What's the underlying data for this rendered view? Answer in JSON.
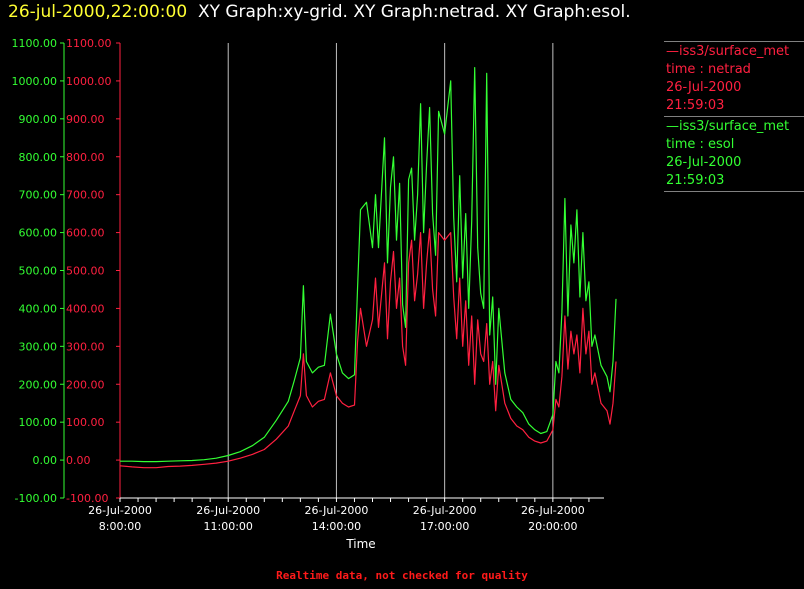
{
  "header": {
    "datetime": "26-jul-2000,22:00:00",
    "graphs": "XY Graph:xy-grid.  XY Graph:netrad.  XY Graph:esol."
  },
  "legend": [
    {
      "line": "iss3/surface_met",
      "label": "time : netrad",
      "date": "26-Jul-2000",
      "time": "21:59:03",
      "color": "#ff2040"
    },
    {
      "line": "iss3/surface_met",
      "label": "time : esol",
      "date": "26-Jul-2000",
      "time": "21:59:03",
      "color": "#33ff33"
    }
  ],
  "footer": "Realtime data, not checked for quality",
  "chart_data": {
    "type": "line",
    "xlabel": "Time",
    "x_ticks": [
      {
        "date": "26-Jul-2000",
        "time": "8:00:00"
      },
      {
        "date": "26-Jul-2000",
        "time": "11:00:00"
      },
      {
        "date": "26-Jul-2000",
        "time": "14:00:00"
      },
      {
        "date": "26-Jul-2000",
        "time": "17:00:00"
      },
      {
        "date": "26-Jul-2000",
        "time": "20:00:00"
      }
    ],
    "xlim": [
      "26-Jul-2000 8:00:00",
      "26-Jul-2000 22:00:00"
    ],
    "y_ticks": [
      "1100.00",
      "1000.00",
      "900.00",
      "800.00",
      "700.00",
      "600.00",
      "500.00",
      "400.00",
      "300.00",
      "200.00",
      "100.00",
      "0.00",
      "-100.00"
    ],
    "ylim": [
      -100,
      1100
    ],
    "grid": "vertical",
    "series": [
      {
        "name": "time : netrad",
        "color": "#ff2040",
        "points": [
          [
            "8:00",
            -15
          ],
          [
            "8:20",
            -18
          ],
          [
            "8:40",
            -20
          ],
          [
            "9:00",
            -20
          ],
          [
            "9:20",
            -17
          ],
          [
            "9:40",
            -16
          ],
          [
            "10:00",
            -14
          ],
          [
            "10:20",
            -11
          ],
          [
            "10:40",
            -8
          ],
          [
            "11:00",
            -3
          ],
          [
            "11:20",
            5
          ],
          [
            "11:40",
            15
          ],
          [
            "12:00",
            28
          ],
          [
            "12:20",
            55
          ],
          [
            "12:40",
            90
          ],
          [
            "12:50",
            130
          ],
          [
            "13:00",
            170
          ],
          [
            "13:05",
            280
          ],
          [
            "13:10",
            170
          ],
          [
            "13:20",
            140
          ],
          [
            "13:30",
            155
          ],
          [
            "13:40",
            160
          ],
          [
            "13:50",
            230
          ],
          [
            "14:00",
            170
          ],
          [
            "14:10",
            150
          ],
          [
            "14:20",
            140
          ],
          [
            "14:30",
            145
          ],
          [
            "14:35",
            310
          ],
          [
            "14:40",
            400
          ],
          [
            "14:50",
            300
          ],
          [
            "15:00",
            370
          ],
          [
            "15:05",
            480
          ],
          [
            "15:10",
            350
          ],
          [
            "15:20",
            520
          ],
          [
            "15:25",
            320
          ],
          [
            "15:30",
            470
          ],
          [
            "15:35",
            550
          ],
          [
            "15:40",
            400
          ],
          [
            "15:45",
            480
          ],
          [
            "15:50",
            300
          ],
          [
            "15:55",
            250
          ],
          [
            "16:00",
            520
          ],
          [
            "16:05",
            580
          ],
          [
            "16:10",
            420
          ],
          [
            "16:15",
            490
          ],
          [
            "16:20",
            600
          ],
          [
            "16:25",
            400
          ],
          [
            "16:30",
            520
          ],
          [
            "16:35",
            610
          ],
          [
            "16:40",
            450
          ],
          [
            "16:45",
            380
          ],
          [
            "16:50",
            600
          ],
          [
            "17:00",
            580
          ],
          [
            "17:10",
            600
          ],
          [
            "17:15",
            430
          ],
          [
            "17:20",
            320
          ],
          [
            "17:25",
            480
          ],
          [
            "17:30",
            300
          ],
          [
            "17:35",
            420
          ],
          [
            "17:40",
            250
          ],
          [
            "17:45",
            380
          ],
          [
            "17:50",
            200
          ],
          [
            "17:55",
            370
          ],
          [
            "18:00",
            280
          ],
          [
            "18:05",
            260
          ],
          [
            "18:10",
            360
          ],
          [
            "18:15",
            200
          ],
          [
            "18:20",
            260
          ],
          [
            "18:25",
            130
          ],
          [
            "18:30",
            250
          ],
          [
            "18:40",
            150
          ],
          [
            "18:50",
            110
          ],
          [
            "19:00",
            90
          ],
          [
            "19:10",
            80
          ],
          [
            "19:20",
            60
          ],
          [
            "19:30",
            50
          ],
          [
            "19:40",
            45
          ],
          [
            "19:50",
            50
          ],
          [
            "20:00",
            80
          ],
          [
            "20:05",
            160
          ],
          [
            "20:10",
            140
          ],
          [
            "20:15",
            220
          ],
          [
            "20:20",
            380
          ],
          [
            "20:25",
            240
          ],
          [
            "20:30",
            340
          ],
          [
            "20:35",
            280
          ],
          [
            "20:40",
            330
          ],
          [
            "20:45",
            230
          ],
          [
            "20:50",
            400
          ],
          [
            "20:55",
            280
          ],
          [
            "21:00",
            340
          ],
          [
            "21:05",
            200
          ],
          [
            "21:10",
            230
          ],
          [
            "21:20",
            150
          ],
          [
            "21:30",
            130
          ],
          [
            "21:35",
            95
          ],
          [
            "21:40",
            150
          ],
          [
            "21:45",
            260
          ]
        ]
      },
      {
        "name": "time : esol",
        "color": "#33ff33",
        "points": [
          [
            "8:00",
            -3
          ],
          [
            "8:20",
            -3
          ],
          [
            "8:40",
            -4
          ],
          [
            "9:00",
            -4
          ],
          [
            "9:20",
            -3
          ],
          [
            "9:40",
            -2
          ],
          [
            "10:00",
            -1
          ],
          [
            "10:20",
            1
          ],
          [
            "10:40",
            5
          ],
          [
            "11:00",
            12
          ],
          [
            "11:20",
            22
          ],
          [
            "11:40",
            38
          ],
          [
            "12:00",
            60
          ],
          [
            "12:20",
            105
          ],
          [
            "12:40",
            155
          ],
          [
            "12:50",
            210
          ],
          [
            "13:00",
            270
          ],
          [
            "13:05",
            460
          ],
          [
            "13:10",
            260
          ],
          [
            "13:20",
            230
          ],
          [
            "13:30",
            245
          ],
          [
            "13:40",
            250
          ],
          [
            "13:50",
            385
          ],
          [
            "14:00",
            280
          ],
          [
            "14:10",
            230
          ],
          [
            "14:20",
            215
          ],
          [
            "14:30",
            225
          ],
          [
            "14:35",
            450
          ],
          [
            "14:40",
            660
          ],
          [
            "14:50",
            680
          ],
          [
            "15:00",
            560
          ],
          [
            "15:05",
            700
          ],
          [
            "15:10",
            560
          ],
          [
            "15:20",
            850
          ],
          [
            "15:25",
            520
          ],
          [
            "15:30",
            720
          ],
          [
            "15:35",
            800
          ],
          [
            "15:40",
            580
          ],
          [
            "15:45",
            730
          ],
          [
            "15:50",
            410
          ],
          [
            "15:55",
            350
          ],
          [
            "16:00",
            740
          ],
          [
            "16:05",
            770
          ],
          [
            "16:10",
            580
          ],
          [
            "16:15",
            700
          ],
          [
            "16:20",
            940
          ],
          [
            "16:25",
            600
          ],
          [
            "16:30",
            780
          ],
          [
            "16:35",
            930
          ],
          [
            "16:40",
            650
          ],
          [
            "16:45",
            540
          ],
          [
            "16:50",
            920
          ],
          [
            "17:00",
            860
          ],
          [
            "17:10",
            1000
          ],
          [
            "17:15",
            640
          ],
          [
            "17:20",
            470
          ],
          [
            "17:25",
            750
          ],
          [
            "17:30",
            480
          ],
          [
            "17:35",
            650
          ],
          [
            "17:40",
            400
          ],
          [
            "17:45",
            630
          ],
          [
            "17:50",
            1035
          ],
          [
            "17:55",
            560
          ],
          [
            "18:00",
            440
          ],
          [
            "18:05",
            400
          ],
          [
            "18:10",
            1020
          ],
          [
            "18:15",
            330
          ],
          [
            "18:20",
            430
          ],
          [
            "18:25",
            200
          ],
          [
            "18:30",
            400
          ],
          [
            "18:40",
            230
          ],
          [
            "18:50",
            160
          ],
          [
            "19:00",
            140
          ],
          [
            "19:10",
            125
          ],
          [
            "19:20",
            95
          ],
          [
            "19:30",
            80
          ],
          [
            "19:40",
            70
          ],
          [
            "19:50",
            75
          ],
          [
            "20:00",
            120
          ],
          [
            "20:05",
            260
          ],
          [
            "20:10",
            230
          ],
          [
            "20:15",
            390
          ],
          [
            "20:20",
            690
          ],
          [
            "20:25",
            380
          ],
          [
            "20:30",
            620
          ],
          [
            "20:35",
            520
          ],
          [
            "20:40",
            660
          ],
          [
            "20:45",
            430
          ],
          [
            "20:50",
            600
          ],
          [
            "20:55",
            420
          ],
          [
            "21:00",
            470
          ],
          [
            "21:05",
            300
          ],
          [
            "21:10",
            330
          ],
          [
            "21:20",
            250
          ],
          [
            "21:30",
            220
          ],
          [
            "21:35",
            180
          ],
          [
            "21:40",
            260
          ],
          [
            "21:45",
            425
          ]
        ]
      }
    ]
  }
}
